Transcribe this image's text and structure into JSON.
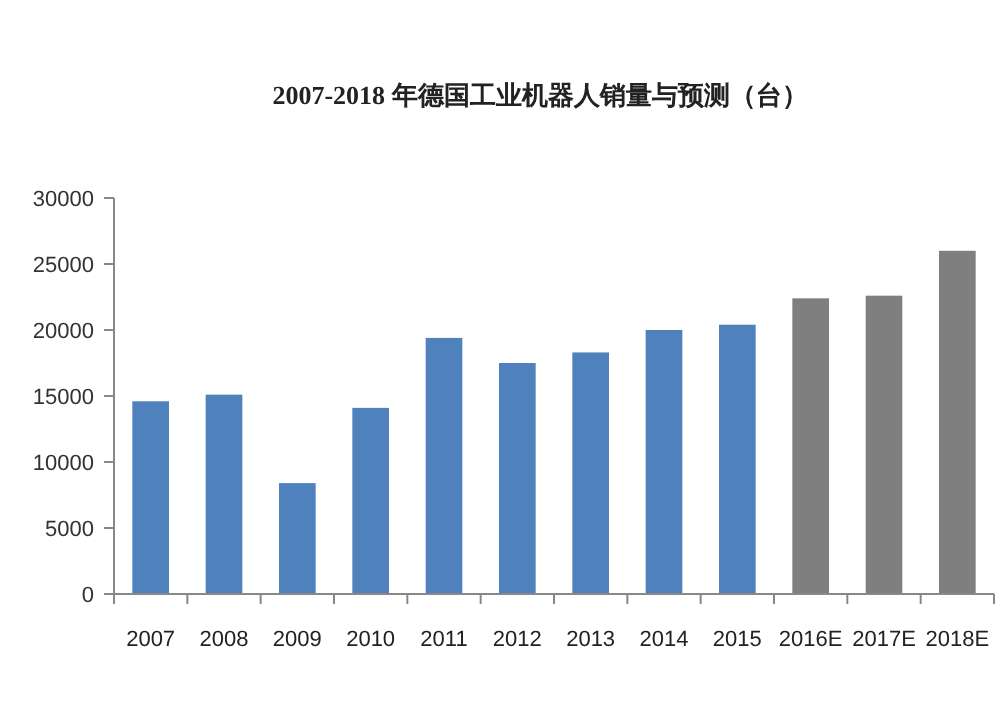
{
  "chart_data": {
    "type": "bar",
    "title": "2007-2018 年德国工业机器人销量与预测（台）",
    "categories": [
      "2007",
      "2008",
      "2009",
      "2010",
      "2011",
      "2012",
      "2013",
      "2014",
      "2015",
      "2016E",
      "2017E",
      "2018E"
    ],
    "values": [
      14600,
      15100,
      8400,
      14100,
      19400,
      17500,
      18300,
      20000,
      20400,
      22400,
      22600,
      26000
    ],
    "colors": [
      "#4f81bd",
      "#4f81bd",
      "#4f81bd",
      "#4f81bd",
      "#4f81bd",
      "#4f81bd",
      "#4f81bd",
      "#4f81bd",
      "#4f81bd",
      "#7f7f7f",
      "#7f7f7f",
      "#7f7f7f"
    ],
    "ylim": [
      0,
      30000
    ],
    "yticks": [
      0,
      5000,
      10000,
      15000,
      20000,
      25000,
      30000
    ]
  }
}
